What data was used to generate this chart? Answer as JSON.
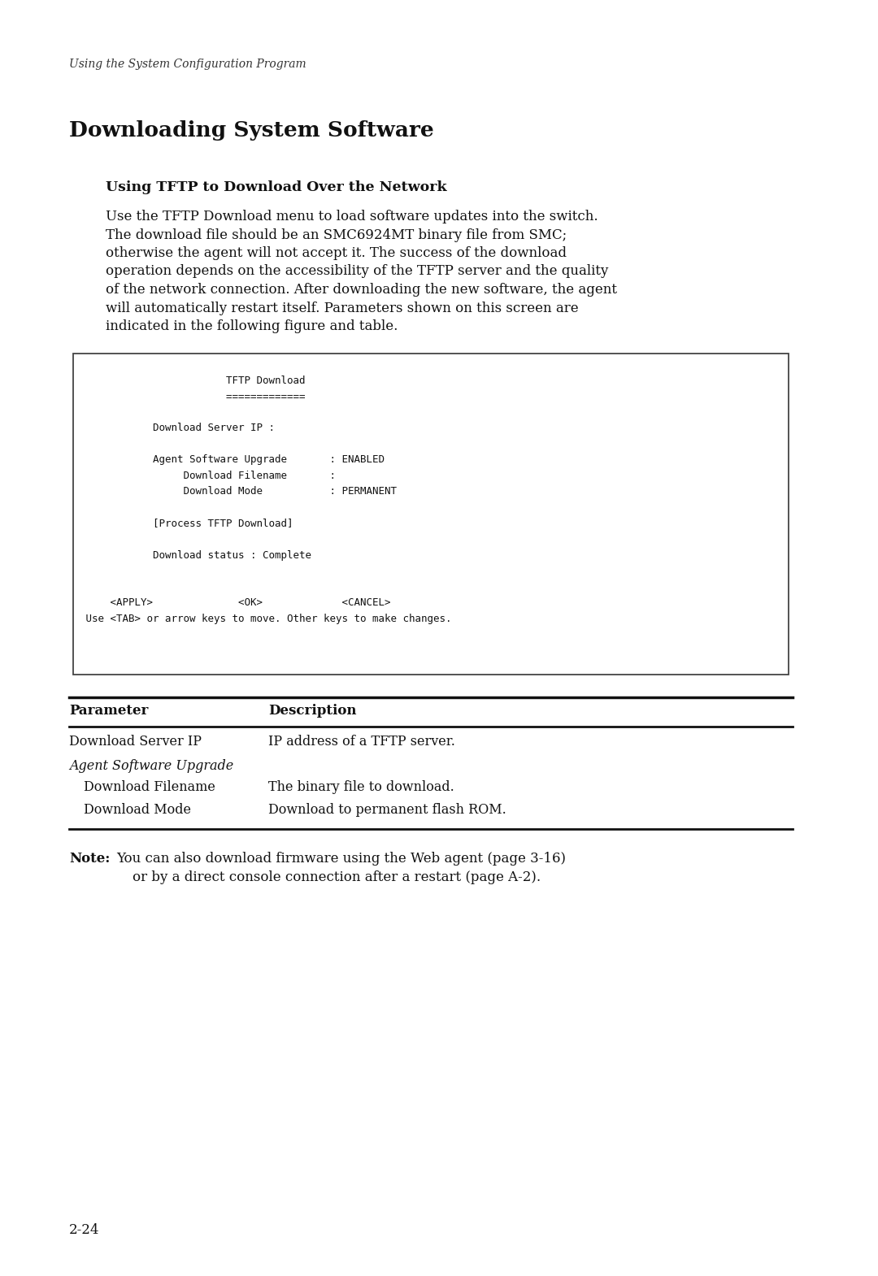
{
  "bg_color": "#ffffff",
  "header_text": "Using the System Configuration Program",
  "section_title": "Downloading System Software",
  "subsection_title": "Using TFTP to Download Over the Network",
  "body_paragraphs": [
    "Use the TFTP Download menu to load software updates into the switch.",
    "The download file should be an SMC6924MT binary file from SMC;",
    "otherwise the agent will not accept it. The success of the download",
    "operation depends on the accessibility of the TFTP server and the quality",
    "of the network connection. After downloading the new software, the agent",
    "will automatically restart itself. Parameters shown on this screen are",
    "indicated in the following figure and table."
  ],
  "terminal_lines": [
    "                        TFTP Download",
    "                        =============",
    "",
    "            Download Server IP :",
    "",
    "            Agent Software Upgrade       : ENABLED",
    "                 Download Filename       :",
    "                 Download Mode           : PERMANENT",
    "",
    "            [Process TFTP Download]",
    "",
    "            Download status : Complete",
    "",
    "",
    "     <APPLY>              <OK>             <CANCEL>",
    " Use <TAB> or arrow keys to move. Other keys to make changes."
  ],
  "table_headers": [
    "Parameter",
    "Description"
  ],
  "table_rows": [
    [
      "Download Server IP",
      "IP address of a TFTP server.",
      "normal"
    ],
    [
      "Agent Software Upgrade",
      "",
      "italic"
    ],
    [
      "  Download Filename",
      "The binary file to download.",
      "normal"
    ],
    [
      "  Download Mode",
      "Download to permanent flash ROM.",
      "normal"
    ]
  ],
  "note_bold": "Note:",
  "note_line1": "You can also download firmware using the Web agent (page 3-16)",
  "note_line2": "or by a direct console connection after a restart (page A-2).",
  "page_number": "2-24"
}
